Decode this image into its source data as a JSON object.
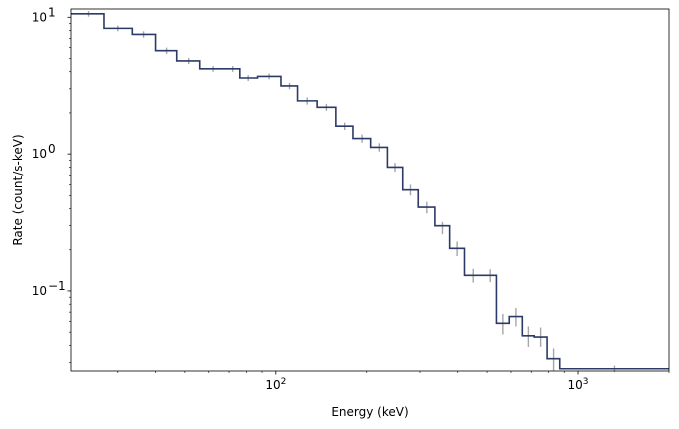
{
  "chart_data": {
    "type": "line",
    "xlabel": "Energy (keV)",
    "ylabel": "Rate (count/s-keV)",
    "xscale": "log",
    "yscale": "log",
    "xlim": [
      21,
      2000
    ],
    "ylim": [
      0.026,
      11.5
    ],
    "grid": false,
    "x_ticks": [
      {
        "value": 100,
        "base": "10",
        "exp": "2"
      },
      {
        "value": 1000,
        "base": "10",
        "exp": "3"
      }
    ],
    "y_ticks": [
      {
        "value": 0.1,
        "base": "10",
        "exp": "−1"
      },
      {
        "value": 1,
        "base": "10",
        "exp": "0"
      },
      {
        "value": 10,
        "base": "10",
        "exp": "1"
      }
    ],
    "series": [
      {
        "style": "step",
        "color": "#2b3a67",
        "bin_edges": [
          21,
          27,
          33.5,
          40,
          47,
          56,
          76,
          87,
          104,
          118,
          137,
          158,
          180,
          206,
          234,
          263,
          296,
          336,
          376,
          421,
          488,
          537,
          592,
          654,
          716,
          790,
          870,
          2000
        ],
        "values": [
          10.6,
          8.3,
          7.5,
          5.7,
          4.8,
          4.2,
          3.6,
          3.7,
          3.15,
          2.45,
          2.2,
          1.6,
          1.3,
          1.12,
          0.8,
          0.55,
          0.41,
          0.3,
          0.205,
          0.13,
          0.13,
          0.058,
          0.065,
          0.047,
          0.046,
          0.032,
          0.027
        ]
      },
      {
        "style": "errorbar",
        "color": "#a6a6a6",
        "points": [
          {
            "x": 24,
            "y": 10.6,
            "lo": 10.1,
            "hi": 11.1
          },
          {
            "x": 30,
            "y": 8.3,
            "lo": 7.9,
            "hi": 8.7
          },
          {
            "x": 36.5,
            "y": 7.5,
            "lo": 7.1,
            "hi": 7.9
          },
          {
            "x": 43.5,
            "y": 5.7,
            "lo": 5.4,
            "hi": 6.0
          },
          {
            "x": 51.5,
            "y": 4.8,
            "lo": 4.55,
            "hi": 5.05
          },
          {
            "x": 62,
            "y": 4.2,
            "lo": 4.0,
            "hi": 4.4
          },
          {
            "x": 72,
            "y": 4.2,
            "lo": 4.0,
            "hi": 4.4
          },
          {
            "x": 81,
            "y": 3.6,
            "lo": 3.42,
            "hi": 3.78
          },
          {
            "x": 95,
            "y": 3.7,
            "lo": 3.52,
            "hi": 3.88
          },
          {
            "x": 111,
            "y": 3.15,
            "lo": 2.98,
            "hi": 3.32
          },
          {
            "x": 127,
            "y": 2.45,
            "lo": 2.3,
            "hi": 2.6
          },
          {
            "x": 147,
            "y": 2.2,
            "lo": 2.07,
            "hi": 2.33
          },
          {
            "x": 169,
            "y": 1.6,
            "lo": 1.5,
            "hi": 1.7
          },
          {
            "x": 193,
            "y": 1.3,
            "lo": 1.21,
            "hi": 1.39
          },
          {
            "x": 220,
            "y": 1.12,
            "lo": 1.04,
            "hi": 1.2
          },
          {
            "x": 248,
            "y": 0.8,
            "lo": 0.74,
            "hi": 0.86
          },
          {
            "x": 279,
            "y": 0.55,
            "lo": 0.5,
            "hi": 0.6
          },
          {
            "x": 316,
            "y": 0.41,
            "lo": 0.37,
            "hi": 0.45
          },
          {
            "x": 356,
            "y": 0.29,
            "lo": 0.26,
            "hi": 0.32
          },
          {
            "x": 398,
            "y": 0.205,
            "lo": 0.18,
            "hi": 0.23
          },
          {
            "x": 450,
            "y": 0.13,
            "lo": 0.115,
            "hi": 0.145
          },
          {
            "x": 512,
            "y": 0.13,
            "lo": 0.116,
            "hi": 0.144
          },
          {
            "x": 564,
            "y": 0.058,
            "lo": 0.048,
            "hi": 0.068
          },
          {
            "x": 623,
            "y": 0.065,
            "lo": 0.055,
            "hi": 0.075
          },
          {
            "x": 685,
            "y": 0.047,
            "lo": 0.039,
            "hi": 0.055
          },
          {
            "x": 752,
            "y": 0.046,
            "lo": 0.039,
            "hi": 0.054
          },
          {
            "x": 830,
            "y": 0.032,
            "lo": 0.026,
            "hi": 0.038
          },
          {
            "x": 1320,
            "y": 0.027,
            "lo": 0.0255,
            "hi": 0.0285
          }
        ]
      }
    ]
  }
}
